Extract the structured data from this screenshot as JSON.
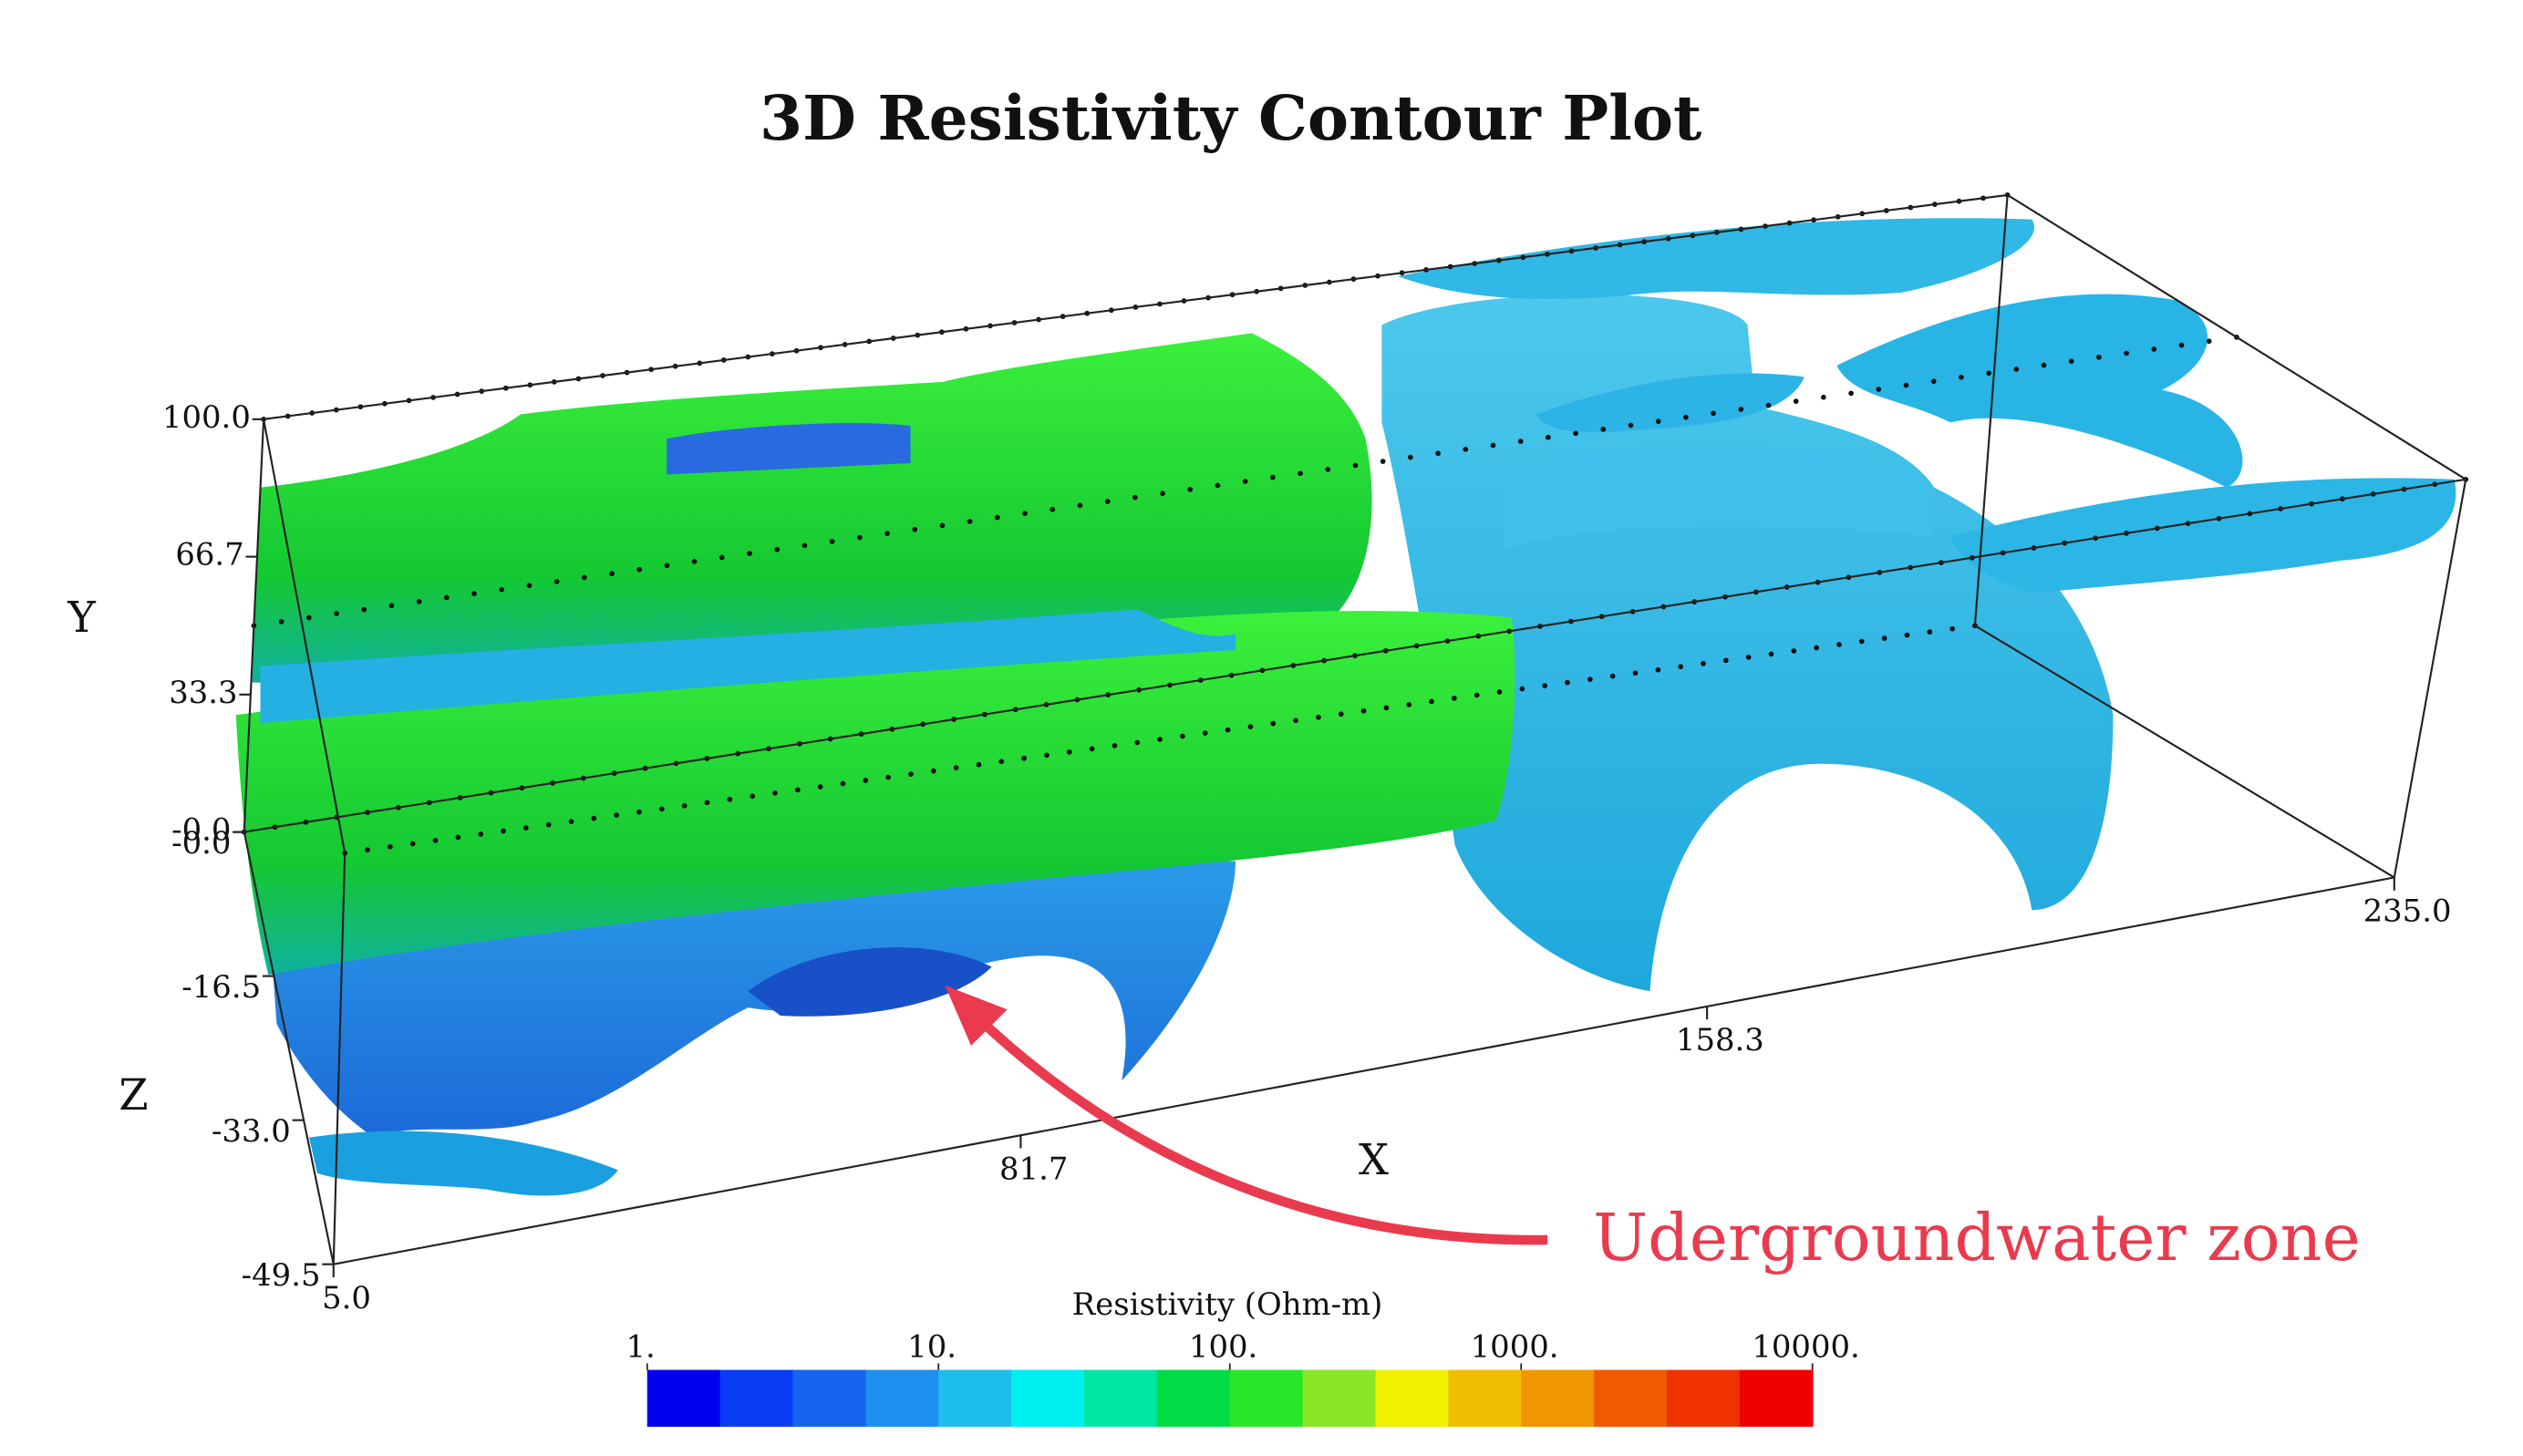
{
  "chart_data": {
    "type": "contour3d",
    "title": "3D Resistivity Contour Plot",
    "x_label": "X",
    "y_label": "Y",
    "z_label": "Z",
    "xlim": [
      5,
      235
    ],
    "xticks": [
      {
        "value": 5,
        "label": "5.0"
      },
      {
        "value": 81.7,
        "label": "81.7"
      },
      {
        "value": 158.3,
        "label": "158.3"
      },
      {
        "value": 235,
        "label": "235.0"
      }
    ],
    "ylim": [
      0,
      100
    ],
    "yticks": [
      {
        "value": 0,
        "label": "-0.0"
      },
      {
        "value": 33.3,
        "label": "33.3"
      },
      {
        "value": 66.7,
        "label": "66.7"
      },
      {
        "value": 100,
        "label": "100.0"
      }
    ],
    "zlim": [
      -49.5,
      0
    ],
    "zticks": [
      {
        "value": 0,
        "label": "-0.0"
      },
      {
        "value": -16.5,
        "label": "-16.5"
      },
      {
        "value": -33,
        "label": "-33.0"
      },
      {
        "value": -49.5,
        "label": "-49.5"
      }
    ],
    "colorbar": {
      "label": "Resistivity (Ohm-m)",
      "log_scale": true,
      "lim": [
        1,
        10000
      ],
      "ticks": [
        {
          "value": 1,
          "label": "1."
        },
        {
          "value": 10,
          "label": "10."
        },
        {
          "value": 100,
          "label": "100."
        },
        {
          "value": 1000,
          "label": "1000."
        },
        {
          "value": 10000,
          "label": "10000."
        }
      ],
      "colors": [
        "#0000f0",
        "#0a3cf5",
        "#1464f0",
        "#1e90f0",
        "#1ebeeb",
        "#00f0f0",
        "#00e6a0",
        "#00dc46",
        "#28e628",
        "#8ce628",
        "#f0f000",
        "#f0be00",
        "#f09600",
        "#f05a00",
        "#f03200",
        "#f00000"
      ]
    },
    "annotation": "Udergroundwater zone"
  }
}
